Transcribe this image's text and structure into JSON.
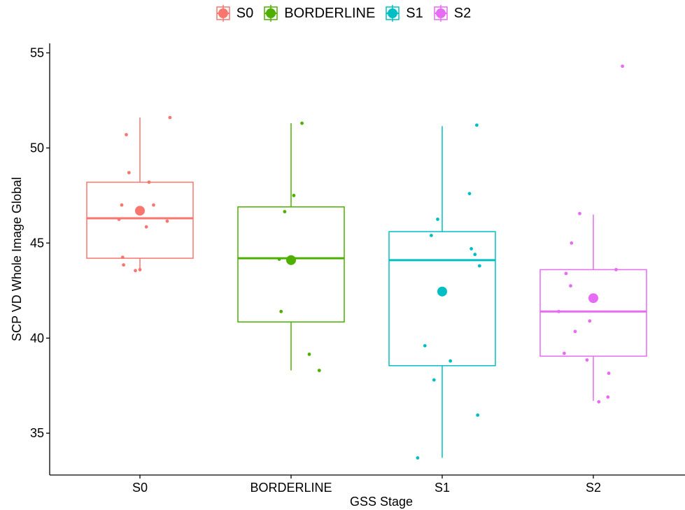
{
  "chart_data": {
    "type": "box",
    "xlabel": "GSS Stage",
    "ylabel": "SCP VD Whole Image Global",
    "categories": [
      "S0",
      "BORDERLINE",
      "S1",
      "S2"
    ],
    "colors": [
      "#F8766D",
      "#4DAF00",
      "#00BFC4",
      "#E76BF3"
    ],
    "legend": {
      "position": "top",
      "labels": [
        "S0",
        "BORDERLINE",
        "S1",
        "S2"
      ]
    },
    "ylim": [
      32.8,
      55.5
    ],
    "yticks": [
      35,
      40,
      45,
      50,
      55
    ],
    "grid": false,
    "series": [
      {
        "name": "S0",
        "box": {
          "min": 43.6,
          "q1": 44.2,
          "median": 46.3,
          "q3": 48.2,
          "max": 51.6
        },
        "mean": 46.7,
        "points": [
          {
            "x": -0.2,
            "y": 47.0
          },
          {
            "x": -0.23,
            "y": 46.25
          },
          {
            "x": -0.19,
            "y": 44.25
          },
          {
            "x": -0.18,
            "y": 43.85
          },
          {
            "x": -0.15,
            "y": 50.7
          },
          {
            "x": -0.12,
            "y": 48.7
          },
          {
            "x": -0.05,
            "y": 43.55
          },
          {
            "x": 0.0,
            "y": 43.6
          },
          {
            "x": 0.07,
            "y": 45.85
          },
          {
            "x": 0.1,
            "y": 48.2
          },
          {
            "x": 0.15,
            "y": 47.0
          },
          {
            "x": 0.3,
            "y": 46.15
          },
          {
            "x": 0.33,
            "y": 51.6
          }
        ]
      },
      {
        "name": "BORDERLINE",
        "box": {
          "min": 38.3,
          "q1": 40.85,
          "median": 44.2,
          "q3": 46.9,
          "max": 51.3
        },
        "mean": 44.1,
        "points": [
          {
            "x": -0.13,
            "y": 44.15
          },
          {
            "x": -0.11,
            "y": 41.4
          },
          {
            "x": -0.07,
            "y": 46.65
          },
          {
            "x": 0.03,
            "y": 47.5
          },
          {
            "x": 0.12,
            "y": 51.3
          },
          {
            "x": 0.2,
            "y": 39.15
          },
          {
            "x": 0.31,
            "y": 38.3
          }
        ]
      },
      {
        "name": "S1",
        "box": {
          "min": 33.7,
          "q1": 38.55,
          "median": 44.1,
          "q3": 45.6,
          "max": 51.15
        },
        "mean": 42.45,
        "points": [
          {
            "x": -0.27,
            "y": 33.7
          },
          {
            "x": -0.19,
            "y": 39.6
          },
          {
            "x": -0.12,
            "y": 45.4
          },
          {
            "x": -0.09,
            "y": 37.8
          },
          {
            "x": -0.05,
            "y": 46.25
          },
          {
            "x": 0.09,
            "y": 38.8
          },
          {
            "x": 0.3,
            "y": 47.6
          },
          {
            "x": 0.32,
            "y": 44.7
          },
          {
            "x": 0.36,
            "y": 44.4
          },
          {
            "x": 0.38,
            "y": 51.2
          },
          {
            "x": 0.39,
            "y": 35.95
          },
          {
            "x": 0.41,
            "y": 43.8
          }
        ]
      },
      {
        "name": "S2",
        "box": {
          "min": 36.7,
          "q1": 39.05,
          "median": 41.4,
          "q3": 43.6,
          "max": 46.5
        },
        "mean": 42.1,
        "points": [
          {
            "x": -0.38,
            "y": 41.4
          },
          {
            "x": -0.32,
            "y": 39.2
          },
          {
            "x": -0.3,
            "y": 43.4
          },
          {
            "x": -0.25,
            "y": 42.75
          },
          {
            "x": -0.24,
            "y": 45.0
          },
          {
            "x": -0.2,
            "y": 40.35
          },
          {
            "x": -0.15,
            "y": 46.55
          },
          {
            "x": -0.07,
            "y": 38.85
          },
          {
            "x": -0.04,
            "y": 40.9
          },
          {
            "x": 0.06,
            "y": 36.65
          },
          {
            "x": 0.16,
            "y": 36.9
          },
          {
            "x": 0.17,
            "y": 38.15
          },
          {
            "x": 0.25,
            "y": 43.6
          },
          {
            "x": 0.32,
            "y": 54.3
          }
        ]
      }
    ]
  }
}
